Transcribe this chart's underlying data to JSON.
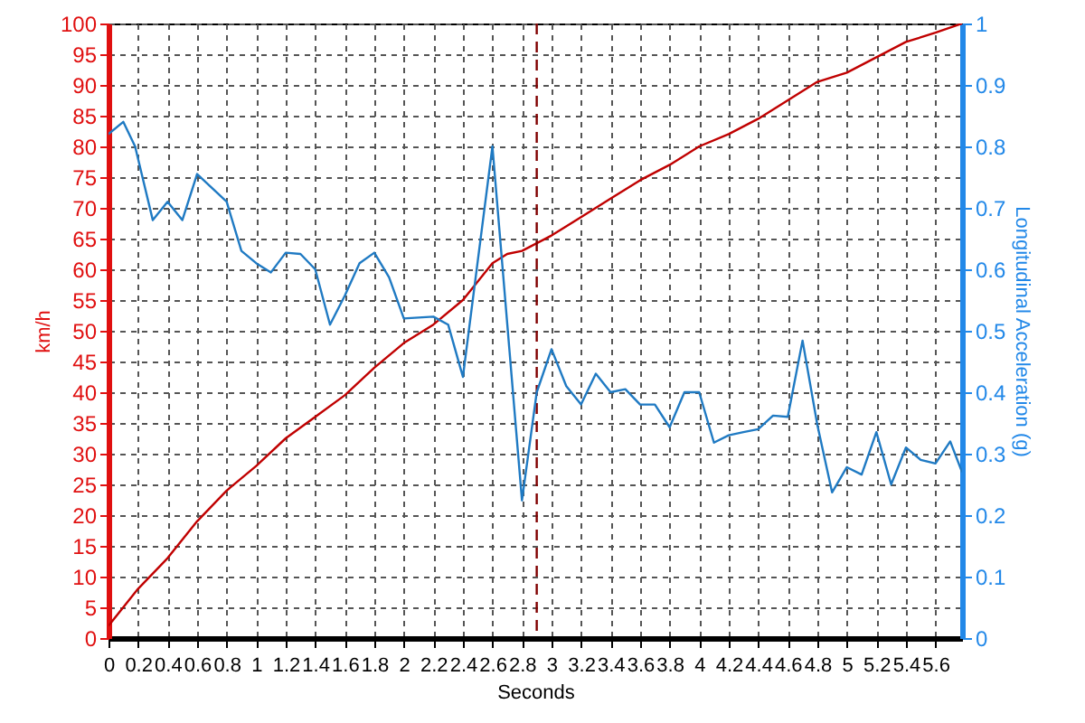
{
  "chart_data": {
    "type": "line",
    "xlabel": "Seconds",
    "ylabel": "km/h",
    "y2label": "Longitudinal Acceleration (g)",
    "xlim": [
      0,
      5.78
    ],
    "xticks": [
      0,
      0.2,
      0.4,
      0.6,
      0.8,
      1,
      1.2,
      1.4,
      1.6,
      1.8,
      2,
      2.2,
      2.4,
      2.6,
      2.8,
      3,
      3.2,
      3.4,
      3.6,
      3.8,
      4,
      4.2,
      4.4,
      4.6,
      4.8,
      5,
      5.2,
      5.4,
      5.6
    ],
    "ylim": [
      0,
      100
    ],
    "yticks": [
      0,
      5,
      10,
      15,
      20,
      25,
      30,
      35,
      40,
      45,
      50,
      55,
      60,
      65,
      70,
      75,
      80,
      85,
      90,
      95,
      100
    ],
    "y2lim": [
      0,
      1
    ],
    "y2ticks": [
      0,
      0.1,
      0.2,
      0.3,
      0.4,
      0.5,
      0.6,
      0.7,
      0.8,
      0.9,
      1
    ],
    "grid": true,
    "marker": "none",
    "line_style": "solid",
    "ref_lines": [
      {
        "axis": "x",
        "value": 2.9,
        "color": "#800000",
        "line_style": "dashed"
      }
    ],
    "series": [
      {
        "color": "#c00000",
        "x": [
          0,
          0.1,
          0.2,
          0.4,
          0.6,
          0.8,
          1,
          1.2,
          1.4,
          1.6,
          1.8,
          2,
          2.2,
          2.4,
          2.6,
          2.7,
          2.8,
          3,
          3.2,
          3.4,
          3.6,
          3.8,
          4,
          4.2,
          4.4,
          4.6,
          4.8,
          5,
          5.2,
          5.4,
          5.6,
          5.78
        ],
        "values": [
          2,
          5,
          8,
          13,
          19,
          24,
          28,
          32.5,
          36,
          39.5,
          44,
          48,
          51,
          55,
          61,
          62.5,
          63,
          65.5,
          68.5,
          71.5,
          74.5,
          77,
          80,
          82,
          84.5,
          87.5,
          90.5,
          92,
          94.5,
          97,
          98.5,
          100
        ]
      },
      {
        "color": "#1f7ac3",
        "axis": "y2",
        "x": [
          0,
          0.1,
          0.18,
          0.3,
          0.4,
          0.5,
          0.6,
          0.8,
          0.9,
          1,
          1.1,
          1.2,
          1.3,
          1.4,
          1.5,
          1.6,
          1.7,
          1.8,
          1.9,
          2,
          2.2,
          2.3,
          2.4,
          2.6,
          2.8,
          2.9,
          3,
          3.1,
          3.2,
          3.3,
          3.4,
          3.5,
          3.6,
          3.7,
          3.8,
          3.9,
          4,
          4.1,
          4.2,
          4.3,
          4.4,
          4.5,
          4.6,
          4.7,
          4.8,
          4.9,
          5,
          5.1,
          5.2,
          5.3,
          5.4,
          5.5,
          5.6,
          5.7,
          5.78
        ],
        "values": [
          0.82,
          0.84,
          0.8,
          0.68,
          0.71,
          0.68,
          0.755,
          0.71,
          0.63,
          0.61,
          0.595,
          0.627,
          0.625,
          0.6,
          0.51,
          0.557,
          0.61,
          0.627,
          0.587,
          0.52,
          0.523,
          0.51,
          0.425,
          0.8,
          0.224,
          0.4,
          0.47,
          0.41,
          0.38,
          0.43,
          0.4,
          0.405,
          0.38,
          0.38,
          0.343,
          0.4,
          0.4,
          0.318,
          0.33,
          0.335,
          0.34,
          0.362,
          0.36,
          0.484,
          0.347,
          0.237,
          0.278,
          0.266,
          0.335,
          0.25,
          0.31,
          0.29,
          0.284,
          0.32,
          0.27
        ]
      }
    ]
  }
}
